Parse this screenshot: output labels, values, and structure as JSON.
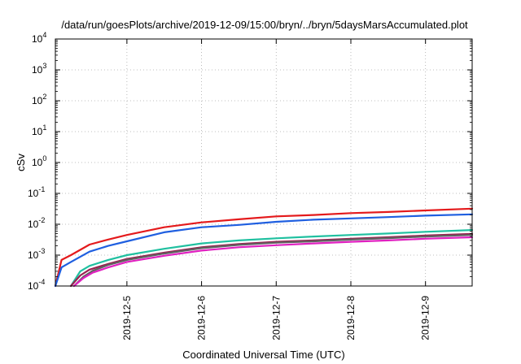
{
  "chart_data": {
    "type": "line",
    "title": "/data/run/goesPlots/archive/2019-12-09/15:00/bryn/../bryn/5daysMarsAccumulated.plot",
    "xlabel": "Coordinated Universal Time (UTC)",
    "ylabel": "cSv",
    "x_scale": "time",
    "y_scale": "log",
    "xlim": [
      "2019-12-04T01:00",
      "2019-12-09T15:00"
    ],
    "ylim": [
      0.0001,
      10000
    ],
    "x_ticks": [
      "2019-12-5",
      "2019-12-6",
      "2019-12-7",
      "2019-12-8",
      "2019-12-9"
    ],
    "y_ticks": [
      {
        "base": "10",
        "exp": "-4"
      },
      {
        "base": "10",
        "exp": "-3"
      },
      {
        "base": "10",
        "exp": "-2"
      },
      {
        "base": "10",
        "exp": "-1"
      },
      {
        "base": "10",
        "exp": "0"
      },
      {
        "base": "10",
        "exp": "1"
      },
      {
        "base": "10",
        "exp": "2"
      },
      {
        "base": "10",
        "exp": "3"
      },
      {
        "base": "10",
        "exp": "4"
      }
    ],
    "grid": true,
    "legend": "none",
    "series": [
      {
        "color": "#e41a1c",
        "x": [
          "2019-12-04T01:00",
          "2019-12-04T03:00",
          "2019-12-04T06:00",
          "2019-12-04T12:00",
          "2019-12-04T18:00",
          "2019-12-05T00:00",
          "2019-12-05T12:00",
          "2019-12-06T00:00",
          "2019-12-06T12:00",
          "2019-12-07T00:00",
          "2019-12-07T12:00",
          "2019-12-08T00:00",
          "2019-12-08T12:00",
          "2019-12-09T00:00",
          "2019-12-09T15:00"
        ],
        "values": [
          0.0001,
          0.0007,
          0.001,
          0.0022,
          0.0032,
          0.0045,
          0.008,
          0.0115,
          0.0145,
          0.018,
          0.02,
          0.023,
          0.025,
          0.028,
          0.032
        ]
      },
      {
        "color": "#1f5fe0",
        "x": [
          "2019-12-04T01:00",
          "2019-12-04T03:00",
          "2019-12-04T06:00",
          "2019-12-04T12:00",
          "2019-12-04T18:00",
          "2019-12-05T00:00",
          "2019-12-05T12:00",
          "2019-12-06T00:00",
          "2019-12-06T12:00",
          "2019-12-07T00:00",
          "2019-12-07T12:00",
          "2019-12-08T00:00",
          "2019-12-08T12:00",
          "2019-12-09T00:00",
          "2019-12-09T15:00"
        ],
        "values": [
          0.0001,
          0.0004,
          0.0006,
          0.0013,
          0.002,
          0.0028,
          0.0055,
          0.008,
          0.0095,
          0.012,
          0.014,
          0.0155,
          0.017,
          0.019,
          0.021
        ]
      },
      {
        "color": "#20c0a0",
        "x": [
          "2019-12-04T06:00",
          "2019-12-04T09:00",
          "2019-12-04T12:00",
          "2019-12-04T18:00",
          "2019-12-05T00:00",
          "2019-12-05T12:00",
          "2019-12-06T00:00",
          "2019-12-06T12:00",
          "2019-12-07T00:00",
          "2019-12-07T12:00",
          "2019-12-08T00:00",
          "2019-12-08T12:00",
          "2019-12-09T00:00",
          "2019-12-09T15:00"
        ],
        "values": [
          0.0001,
          0.0003,
          0.00045,
          0.0007,
          0.001,
          0.0016,
          0.0024,
          0.003,
          0.0035,
          0.004,
          0.0045,
          0.005,
          0.0057,
          0.0065
        ]
      },
      {
        "color": "#9a2050",
        "x": [
          "2019-12-04T06:00",
          "2019-12-04T09:00",
          "2019-12-04T12:00",
          "2019-12-04T18:00",
          "2019-12-05T00:00",
          "2019-12-05T12:00",
          "2019-12-06T00:00",
          "2019-12-06T12:00",
          "2019-12-07T00:00",
          "2019-12-07T12:00",
          "2019-12-08T00:00",
          "2019-12-08T12:00",
          "2019-12-09T00:00",
          "2019-12-09T15:00"
        ],
        "values": [
          0.0001,
          0.00022,
          0.00034,
          0.00052,
          0.00075,
          0.0012,
          0.0018,
          0.0023,
          0.0027,
          0.003,
          0.0034,
          0.0038,
          0.0043,
          0.0049
        ]
      },
      {
        "color": "#606060",
        "x": [
          "2019-12-04T07:00",
          "2019-12-04T10:00",
          "2019-12-04T13:00",
          "2019-12-04T18:00",
          "2019-12-05T00:00",
          "2019-12-05T12:00",
          "2019-12-06T00:00",
          "2019-12-06T12:00",
          "2019-12-07T00:00",
          "2019-12-07T12:00",
          "2019-12-08T00:00",
          "2019-12-08T12:00",
          "2019-12-09T00:00",
          "2019-12-09T15:00"
        ],
        "values": [
          0.0001,
          0.0002,
          0.00031,
          0.00048,
          0.0007,
          0.00112,
          0.00168,
          0.00215,
          0.00252,
          0.0028,
          0.00318,
          0.00355,
          0.004,
          0.0045
        ]
      },
      {
        "color": "#e020c0",
        "x": [
          "2019-12-04T07:00",
          "2019-12-04T10:00",
          "2019-12-04T13:00",
          "2019-12-04T18:00",
          "2019-12-05T00:00",
          "2019-12-05T12:00",
          "2019-12-06T00:00",
          "2019-12-06T12:00",
          "2019-12-07T00:00",
          "2019-12-07T12:00",
          "2019-12-08T00:00",
          "2019-12-08T12:00",
          "2019-12-09T00:00",
          "2019-12-09T15:00"
        ],
        "values": [
          0.0001,
          0.00018,
          0.00027,
          0.0004,
          0.0006,
          0.00095,
          0.0014,
          0.0018,
          0.0021,
          0.0024,
          0.0027,
          0.003,
          0.0034,
          0.0038
        ]
      }
    ]
  }
}
